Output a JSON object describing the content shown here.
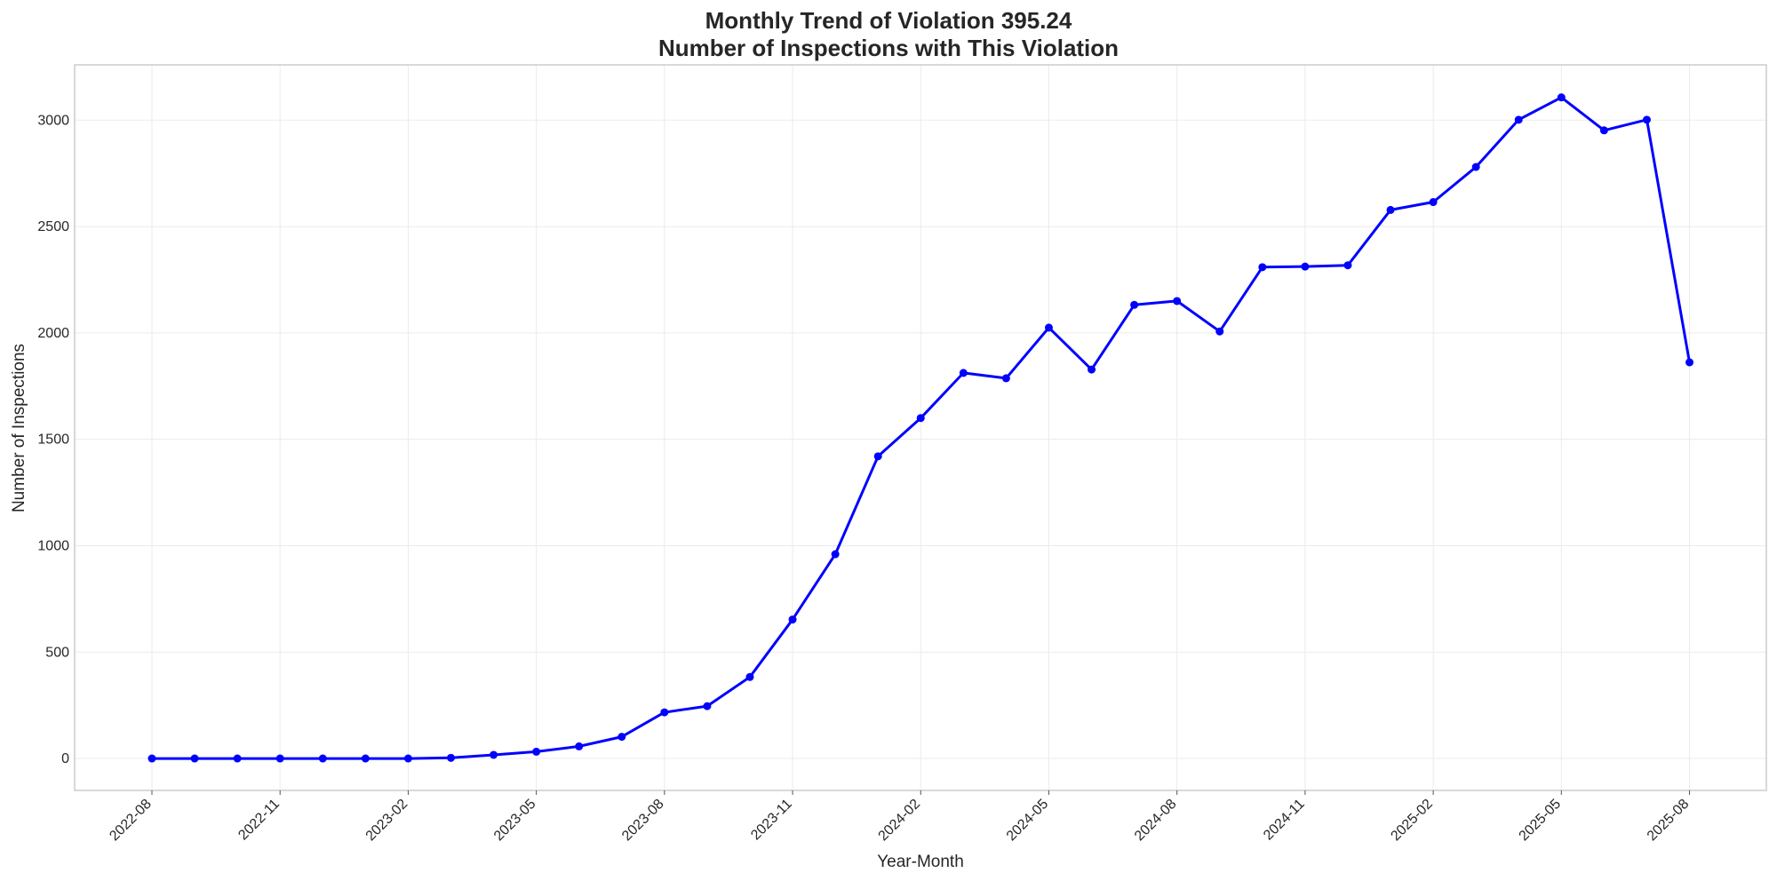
{
  "chart_data": {
    "type": "line",
    "title_line1": "Monthly Trend of Violation 395.24",
    "title_line2": "Number of Inspections with This Violation",
    "xlabel": "Year-Month",
    "ylabel": "Number of Inspections",
    "x": [
      "2022-08",
      "2022-09",
      "2022-10",
      "2022-11",
      "2022-12",
      "2023-01",
      "2023-02",
      "2023-03",
      "2023-04",
      "2023-05",
      "2023-06",
      "2023-07",
      "2023-08",
      "2023-09",
      "2023-10",
      "2023-11",
      "2023-12",
      "2024-01",
      "2024-02",
      "2024-03",
      "2024-04",
      "2024-05",
      "2024-06",
      "2024-07",
      "2024-08",
      "2024-09",
      "2024-10",
      "2024-11",
      "2024-12",
      "2025-01",
      "2025-02",
      "2025-03",
      "2025-04",
      "2025-05",
      "2025-06",
      "2025-07",
      "2025-08"
    ],
    "x_tick_labels": [
      "2022-08",
      "2022-11",
      "2023-02",
      "2023-05",
      "2023-08",
      "2023-11",
      "2024-02",
      "2024-05",
      "2024-08",
      "2024-11",
      "2025-02",
      "2025-05",
      "2025-08"
    ],
    "series": [
      {
        "values": [
          0,
          0,
          0,
          0,
          0,
          0,
          0,
          3,
          17,
          32,
          57,
          102,
          217,
          246,
          383,
          653,
          960,
          1420,
          1600,
          1812,
          1787,
          2025,
          1828,
          2132,
          2150,
          2007,
          2309,
          2312,
          2318,
          2578,
          2615,
          2780,
          3002,
          3107,
          2952,
          3002,
          1862
        ],
        "color": "#0000ff"
      }
    ],
    "y_ticks": [
      0,
      500,
      1000,
      1500,
      2000,
      2500,
      3000
    ],
    "ylim": [
      -150,
      3260
    ],
    "grid": true,
    "legend": "none"
  }
}
